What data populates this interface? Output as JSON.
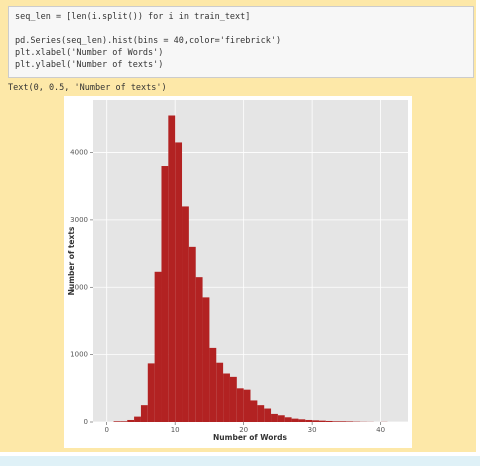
{
  "code_cell": {
    "lines": [
      "seq_len = [len(i.split()) for i in train_text]",
      "pd.Series(seq_len).hist(bins = 40,color='firebrick')",
      "plt.xlabel('Number of Words')",
      "plt.ylabel('Number of texts')"
    ]
  },
  "output_text": "Text(0, 0.5, 'Number of texts')",
  "chart_data": {
    "type": "histogram",
    "x_label": "Number of Words",
    "y_label": "Number of texts",
    "color": "#b22222",
    "grid": true,
    "bins": [
      1,
      2,
      3,
      4,
      5,
      6,
      7,
      8,
      9,
      10,
      11,
      12,
      13,
      14,
      15,
      16,
      17,
      18,
      19,
      20,
      21,
      22,
      23,
      24,
      25,
      26,
      27,
      28,
      29,
      30,
      31,
      32,
      33,
      34,
      35,
      36,
      37,
      38,
      39,
      40,
      41
    ],
    "values": [
      10,
      10,
      30,
      80,
      250,
      870,
      2230,
      3800,
      4550,
      4150,
      3200,
      2600,
      2150,
      1850,
      1100,
      880,
      720,
      670,
      500,
      480,
      320,
      250,
      200,
      120,
      100,
      70,
      50,
      40,
      30,
      25,
      20,
      15,
      10,
      10,
      8,
      5,
      3,
      2,
      0,
      2
    ],
    "xlim": [
      -2,
      44
    ],
    "ylim": [
      0,
      4780
    ],
    "xticks": [
      0,
      10,
      20,
      30,
      40
    ],
    "yticks": [
      0,
      1000,
      2000,
      3000,
      4000
    ]
  }
}
